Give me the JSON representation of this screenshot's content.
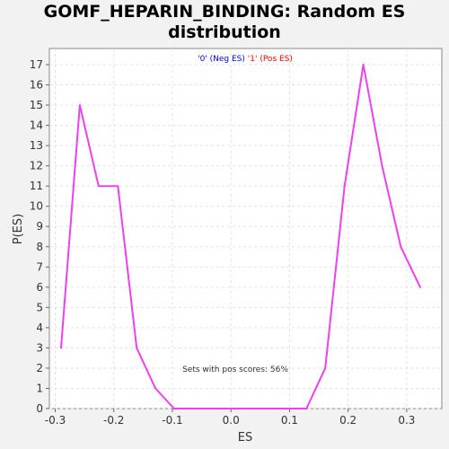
{
  "title_line1": "GOMF_HEPARIN_BINDING: Random ES",
  "title_line2": "distribution",
  "chart_data": {
    "type": "line",
    "title": "GOMF_HEPARIN_BINDING: Random ES distribution",
    "xlabel": "ES",
    "ylabel": "P(ES)",
    "xlim": [
      -0.31,
      0.36
    ],
    "ylim": [
      0,
      17.8
    ],
    "xticks": [
      "-0.3",
      "-0.2",
      "-0.1",
      "0.0",
      "0.1",
      "0.2",
      "0.3"
    ],
    "yticks": [
      "0",
      "1",
      "2",
      "3",
      "4",
      "5",
      "6",
      "7",
      "8",
      "9",
      "10",
      "11",
      "12",
      "13",
      "14",
      "15",
      "16",
      "17"
    ],
    "grid": true,
    "legend": {
      "placement": "top-center",
      "neg_label": "'0' (Neg ES)",
      "pos_label": "'1' (Pos ES)",
      "neg_color": "#0000ff",
      "pos_color": "#ff0000"
    },
    "annotation": "Sets with pos scores: 56%",
    "series": [
      {
        "color": "#ee40ee",
        "x": [
          -0.29,
          -0.258,
          -0.226,
          -0.193,
          -0.161,
          -0.129,
          -0.097,
          -0.064,
          -0.032,
          0.0,
          0.032,
          0.064,
          0.097,
          0.129,
          0.161,
          0.194,
          0.226,
          0.258,
          0.29,
          0.323
        ],
        "y": [
          3,
          15,
          11,
          11,
          3,
          1,
          0,
          0,
          0,
          0,
          0,
          0,
          0,
          0,
          2,
          11,
          17,
          12,
          8,
          6
        ]
      }
    ]
  }
}
